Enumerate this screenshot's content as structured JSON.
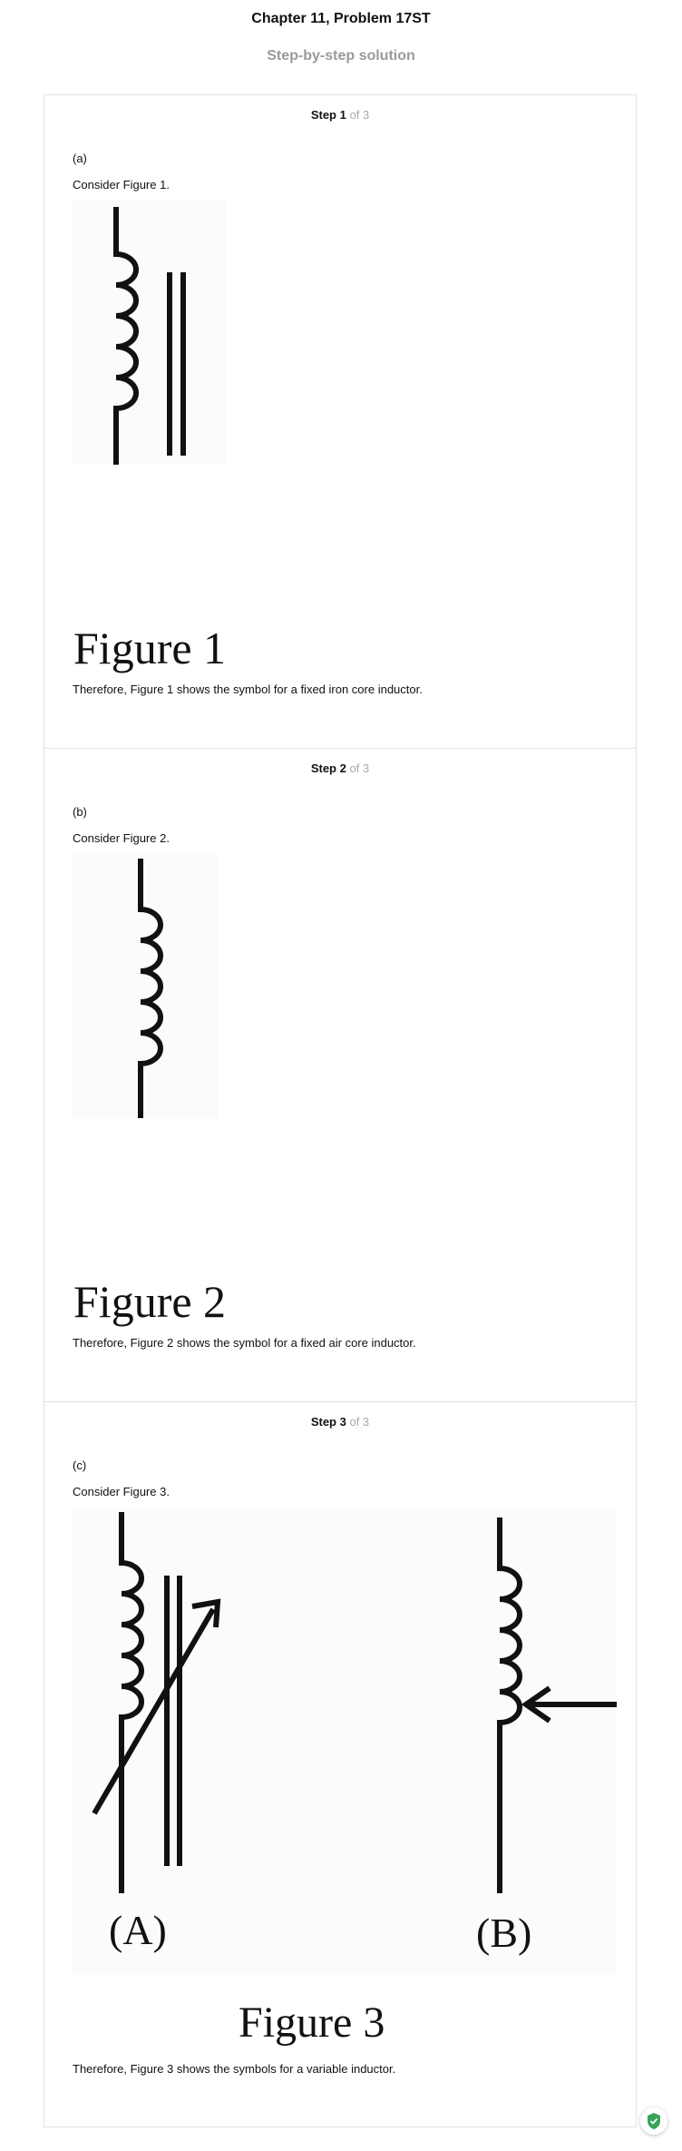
{
  "header": {
    "title": "Chapter 11, Problem 17ST",
    "subtitle": "Step-by-step solution"
  },
  "steps": [
    {
      "number": "Step 1",
      "of": "of 3",
      "part": "(a)",
      "consider": "Consider Figure 1.",
      "figure_caption": "Figure 1",
      "conclusion": "Therefore, Figure 1 shows the symbol for a fixed iron core inductor."
    },
    {
      "number": "Step 2",
      "of": "of 3",
      "part": "(b)",
      "consider": "Consider Figure 2.",
      "figure_caption": "Figure 2",
      "conclusion": "Therefore, Figure 2 shows the symbol for a fixed air core inductor."
    },
    {
      "number": "Step 3",
      "of": "of 3",
      "part": "(c)",
      "consider": "Consider Figure 3.",
      "figure_caption": "Figure 3",
      "label_a": "(A)",
      "label_b": "(B)",
      "conclusion": "Therefore, Figure 3 shows the symbols for a variable inductor."
    }
  ],
  "icons": {
    "badge": "shield-check-icon",
    "badge_color": "#3aa35b"
  }
}
